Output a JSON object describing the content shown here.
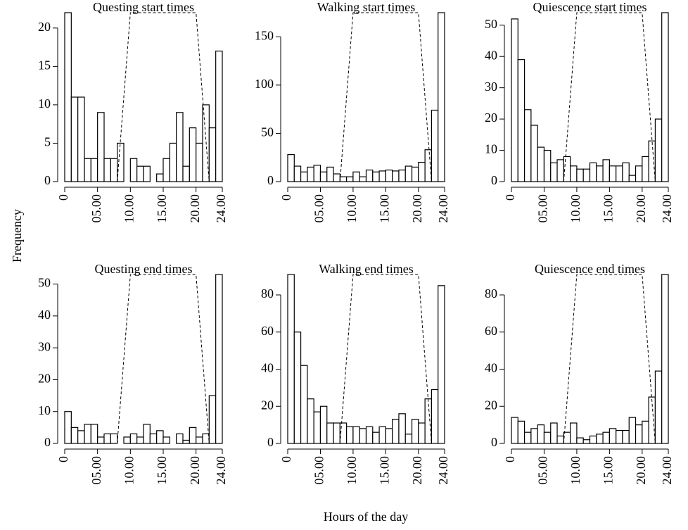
{
  "xlabel": "Hours of the day",
  "ylabel": "Frequency",
  "chart_data": [
    {
      "type": "histogram",
      "title": "Questing start times",
      "bins": [
        0,
        1,
        2,
        3,
        4,
        5,
        6,
        7,
        8,
        9,
        10,
        11,
        12,
        13,
        14,
        15,
        16,
        17,
        18,
        19,
        20,
        21,
        22,
        23,
        24
      ],
      "values": [
        22,
        11,
        11,
        3,
        3,
        9,
        3,
        3,
        5,
        0,
        3,
        2,
        2,
        0,
        1,
        3,
        5,
        9,
        2,
        7,
        5,
        10,
        7,
        17
      ],
      "xlim": [
        0,
        24
      ],
      "xticks": [
        0,
        {
          "value": 5,
          "label": "05.00"
        },
        {
          "value": 10,
          "label": "10.00"
        },
        {
          "value": 15,
          "label": "15.00"
        },
        {
          "value": 20,
          "label": "20.00"
        },
        {
          "value": 24,
          "label": "24.00"
        }
      ],
      "ylim": [
        0,
        22
      ],
      "yticks": [
        0,
        5,
        10,
        15,
        20
      ]
    },
    {
      "type": "histogram",
      "title": "Walking start times",
      "bins": [
        0,
        1,
        2,
        3,
        4,
        5,
        6,
        7,
        8,
        9,
        10,
        11,
        12,
        13,
        14,
        15,
        16,
        17,
        18,
        19,
        20,
        21,
        22,
        23,
        24
      ],
      "values": [
        28,
        16,
        10,
        15,
        17,
        10,
        15,
        8,
        5,
        5,
        10,
        5,
        12,
        10,
        11,
        12,
        11,
        12,
        16,
        15,
        20,
        33,
        74,
        175
      ],
      "xlim": [
        0,
        24
      ],
      "xticks": [
        0,
        {
          "value": 5,
          "label": "05.00"
        },
        {
          "value": 10,
          "label": "10.00"
        },
        {
          "value": 15,
          "label": "15.00"
        },
        {
          "value": 20,
          "label": "20.00"
        },
        {
          "value": 24,
          "label": "24.00"
        }
      ],
      "ylim": [
        0,
        175
      ],
      "yticks": [
        0,
        50,
        100,
        150
      ]
    },
    {
      "type": "histogram",
      "title": "Quiescence start times",
      "bins": [
        0,
        1,
        2,
        3,
        4,
        5,
        6,
        7,
        8,
        9,
        10,
        11,
        12,
        13,
        14,
        15,
        16,
        17,
        18,
        19,
        20,
        21,
        22,
        23,
        24
      ],
      "values": [
        52,
        39,
        23,
        18,
        11,
        10,
        6,
        7,
        8,
        5,
        4,
        4,
        6,
        5,
        7,
        5,
        5,
        6,
        2,
        5,
        8,
        13,
        20,
        54
      ],
      "xlim": [
        0,
        24
      ],
      "xticks": [
        0,
        {
          "value": 5,
          "label": "05.00"
        },
        {
          "value": 10,
          "label": "10.00"
        },
        {
          "value": 15,
          "label": "15.00"
        },
        {
          "value": 20,
          "label": "20.00"
        },
        {
          "value": 24,
          "label": "24.00"
        }
      ],
      "ylim": [
        0,
        54
      ],
      "yticks": [
        0,
        10,
        20,
        30,
        40,
        50
      ]
    },
    {
      "type": "histogram",
      "title": "Questing end times",
      "bins": [
        0,
        1,
        2,
        3,
        4,
        5,
        6,
        7,
        8,
        9,
        10,
        11,
        12,
        13,
        14,
        15,
        16,
        17,
        18,
        19,
        20,
        21,
        22,
        23,
        24
      ],
      "values": [
        10,
        5,
        4,
        6,
        6,
        2,
        3,
        3,
        0,
        2,
        3,
        2,
        6,
        3,
        4,
        2,
        0,
        3,
        1,
        5,
        2,
        3,
        15,
        53
      ],
      "xlim": [
        0,
        24
      ],
      "xticks": [
        0,
        {
          "value": 5,
          "label": "05.00"
        },
        {
          "value": 10,
          "label": "10.00"
        },
        {
          "value": 15,
          "label": "15.00"
        },
        {
          "value": 20,
          "label": "20.00"
        },
        {
          "value": 24,
          "label": "24.00"
        }
      ],
      "ylim": [
        0,
        53
      ],
      "yticks": [
        0,
        10,
        20,
        30,
        40,
        50
      ]
    },
    {
      "type": "histogram",
      "title": "Walking end times",
      "bins": [
        0,
        1,
        2,
        3,
        4,
        5,
        6,
        7,
        8,
        9,
        10,
        11,
        12,
        13,
        14,
        15,
        16,
        17,
        18,
        19,
        20,
        21,
        22,
        23,
        24
      ],
      "values": [
        91,
        60,
        42,
        24,
        17,
        20,
        11,
        11,
        11,
        9,
        9,
        8,
        9,
        6,
        9,
        8,
        13,
        16,
        5,
        13,
        11,
        24,
        29,
        85
      ],
      "xlim": [
        0,
        24
      ],
      "xticks": [
        0,
        {
          "value": 5,
          "label": "05.00"
        },
        {
          "value": 10,
          "label": "10.00"
        },
        {
          "value": 15,
          "label": "15.00"
        },
        {
          "value": 20,
          "label": "20.00"
        },
        {
          "value": 24,
          "label": "24.00"
        }
      ],
      "ylim": [
        0,
        91
      ],
      "yticks": [
        0,
        20,
        40,
        60,
        80
      ]
    },
    {
      "type": "histogram",
      "title": "Quiescence end times",
      "bins": [
        0,
        1,
        2,
        3,
        4,
        5,
        6,
        7,
        8,
        9,
        10,
        11,
        12,
        13,
        14,
        15,
        16,
        17,
        18,
        19,
        20,
        21,
        22,
        23,
        24
      ],
      "values": [
        14,
        12,
        6,
        8,
        10,
        6,
        11,
        4,
        6,
        11,
        3,
        2,
        4,
        5,
        6,
        8,
        7,
        7,
        14,
        10,
        12,
        25,
        39,
        91
      ],
      "xlim": [
        0,
        24
      ],
      "xticks": [
        0,
        {
          "value": 5,
          "label": "05.00"
        },
        {
          "value": 10,
          "label": "10.00"
        },
        {
          "value": 15,
          "label": "15.00"
        },
        {
          "value": 20,
          "label": "20.00"
        },
        {
          "value": 24,
          "label": "24.00"
        }
      ],
      "ylim": [
        0,
        91
      ],
      "yticks": [
        0,
        20,
        40,
        60,
        80
      ]
    }
  ]
}
